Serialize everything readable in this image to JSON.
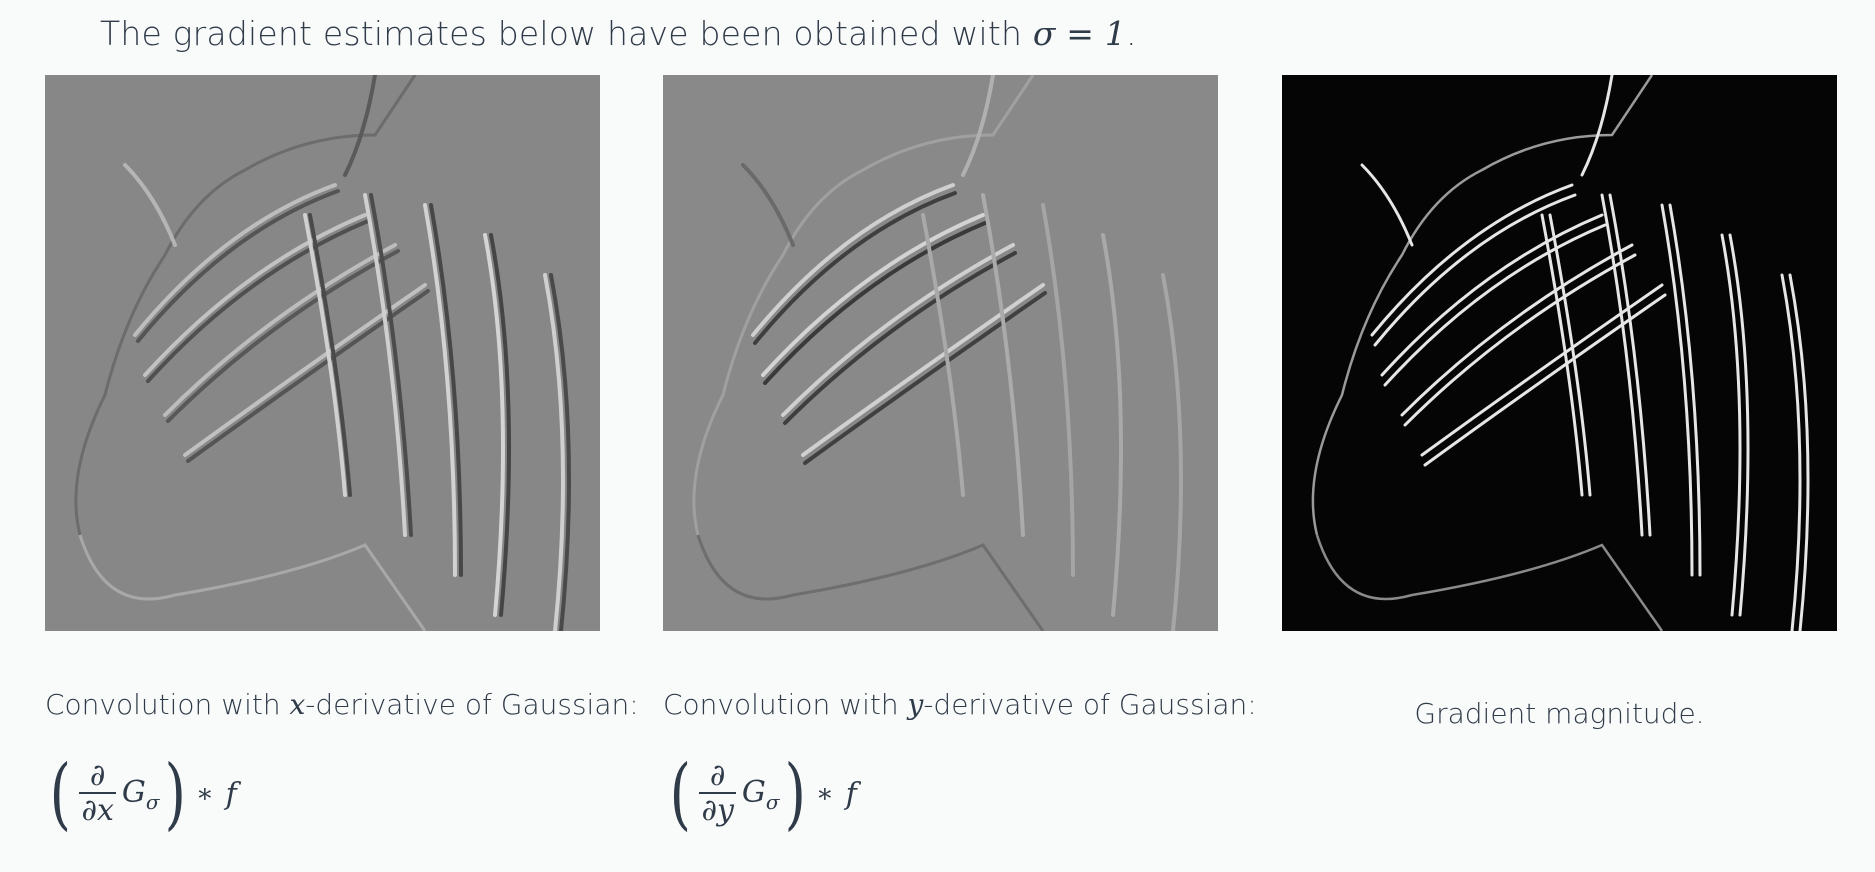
{
  "intro": {
    "text": "The gradient estimates below have been obtained with",
    "math": "σ = 1",
    "period": "."
  },
  "panels": [
    {
      "caption_prefix": "Convolution with",
      "caption_var": "x",
      "caption_suffix": "-derivative of Gaussian:",
      "formula": {
        "numerator": "∂",
        "denominator": "∂x",
        "kernel": "G",
        "kernel_sub": "σ",
        "op": "∗",
        "signal": "f"
      }
    },
    {
      "caption_prefix": "Convolution with",
      "caption_var": "y",
      "caption_suffix": "-derivative of Gaussian:",
      "formula": {
        "numerator": "∂",
        "denominator": "∂y",
        "kernel": "G",
        "kernel_sub": "σ",
        "op": "∗",
        "signal": "f"
      }
    },
    {
      "caption": "Gradient magnitude."
    }
  ],
  "colors": {
    "background": "#f9fafa",
    "text": "#2f3b48",
    "derivative_bg": "#888888",
    "magnitude_bg": "#050505"
  }
}
